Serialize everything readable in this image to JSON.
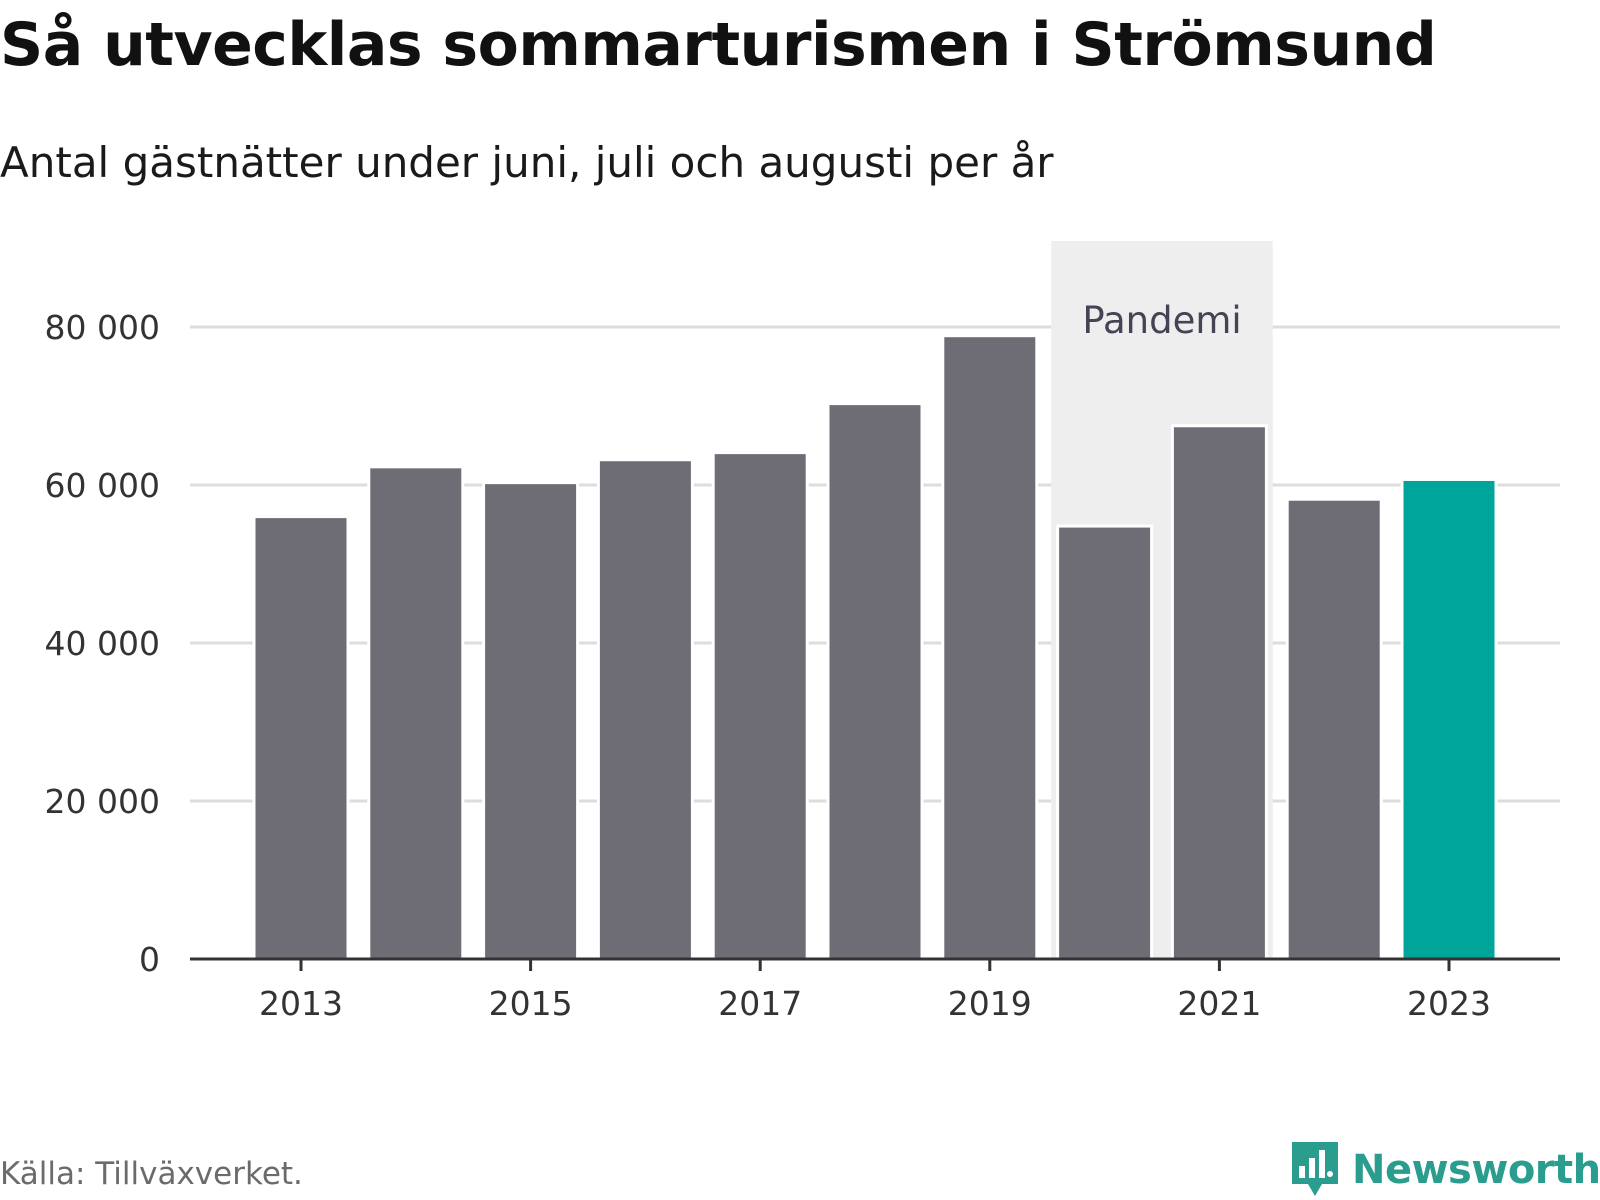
{
  "header": {
    "title": "Så utvecklas sommarturismen i Strömsund",
    "subtitle": "Antal gästnätter under juni, juli och augusti per år"
  },
  "footer": {
    "source": "Källa: Tillväxverket.",
    "brand": "Newsworthy",
    "brand_icon": "bar-chart-speech-bubble-icon"
  },
  "colors": {
    "bar_default": "#6e6d75",
    "bar_highlight": "#00a59a",
    "band": "#eeeeee",
    "grid": "#dddddd",
    "axis": "#333333",
    "brand": "#2a9d8f"
  },
  "chart_data": {
    "type": "bar",
    "title": "Så utvecklas sommarturismen i Strömsund",
    "subtitle": "Antal gästnätter under juni, juli och augusti per år",
    "categories": [
      "2013",
      "2014",
      "2015",
      "2016",
      "2017",
      "2018",
      "2019",
      "2020",
      "2021",
      "2022",
      "2023"
    ],
    "values": [
      56000,
      62300,
      60300,
      63200,
      64100,
      70300,
      78900,
      54800,
      67500,
      58200,
      60700
    ],
    "highlight_category": "2023",
    "x_tick_labels": [
      "2013",
      "2015",
      "2017",
      "2019",
      "2021",
      "2023"
    ],
    "y_ticks": [
      0,
      20000,
      40000,
      60000,
      80000
    ],
    "y_tick_labels": [
      "0",
      "20 000",
      "40 000",
      "60 000",
      "80 000"
    ],
    "ylim": [
      0,
      80000
    ],
    "xlabel": "",
    "ylabel": "",
    "grid": true,
    "legend": "none",
    "annotations": [
      {
        "label": "Pandemi",
        "from": "2020",
        "to": "2021",
        "kind": "shaded-band"
      }
    ]
  }
}
